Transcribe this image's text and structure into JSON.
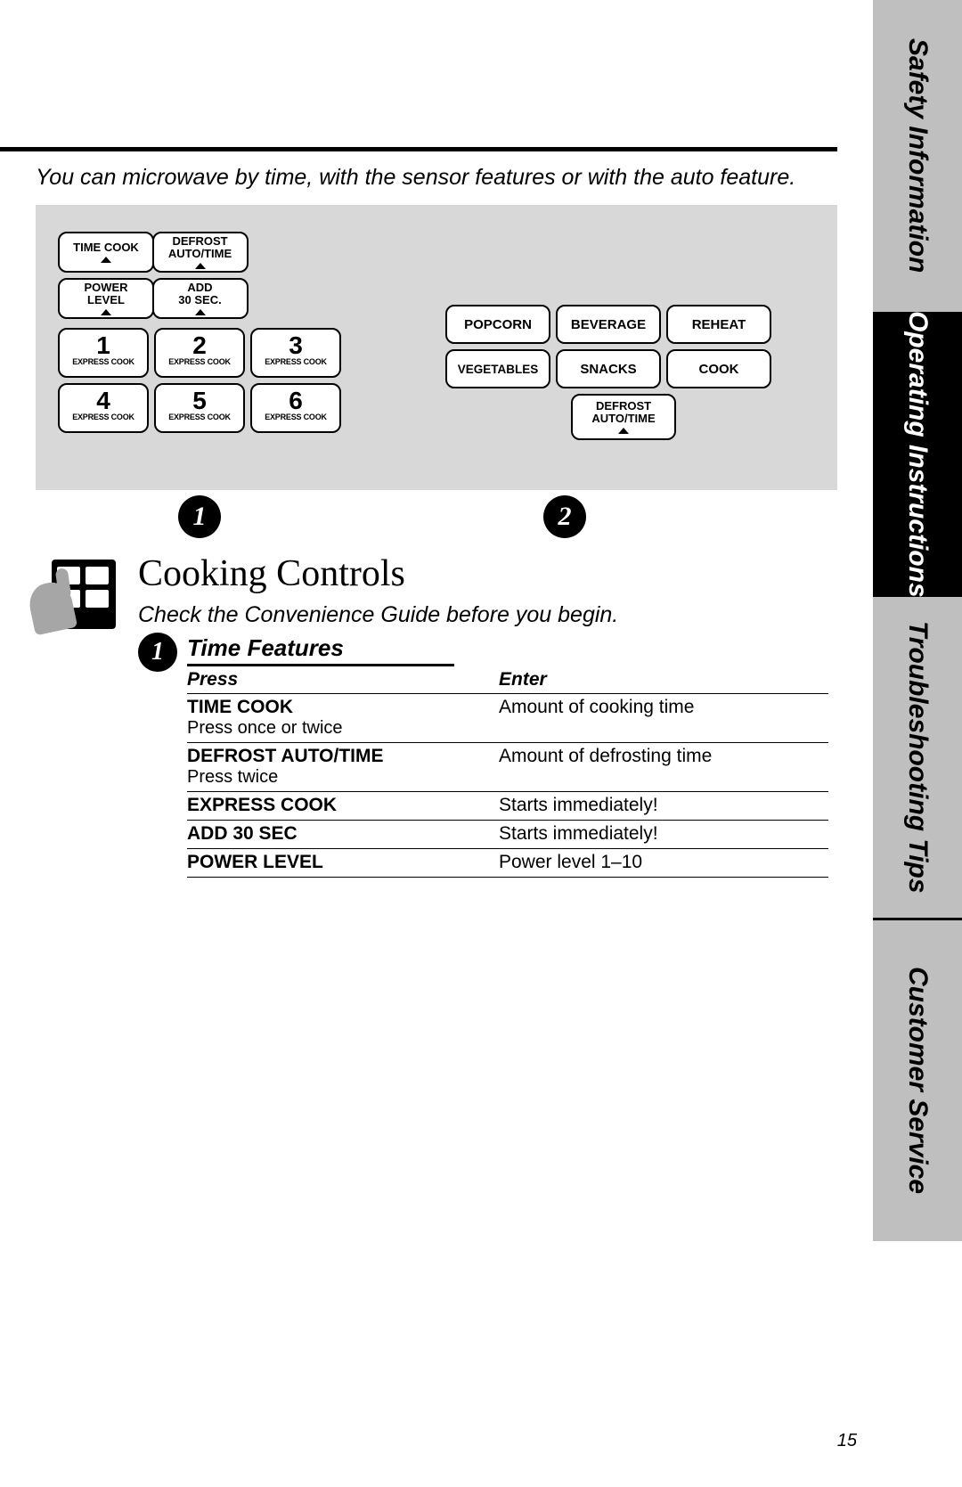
{
  "tabs": {
    "safety": "Safety Information",
    "operating": "Operating Instructions",
    "troubleshooting": "Troubleshooting Tips",
    "customer": "Customer Service"
  },
  "intro": "You can microwave by time, with the sensor features or with the auto feature.",
  "panel": {
    "timecook": "TIME COOK",
    "defrost_line1": "DEFROST",
    "defrost_line2": "AUTO/TIME",
    "power_line1": "POWER",
    "power_line2": "LEVEL",
    "add_line1": "ADD",
    "add_line2": "30 SEC.",
    "express": "EXPRESS COOK",
    "nums": [
      "1",
      "2",
      "3",
      "4",
      "5",
      "6"
    ],
    "right": {
      "popcorn": "POPCORN",
      "beverage": "BEVERAGE",
      "reheat": "REHEAT",
      "vegetables": "VEGETABLES",
      "snacks": "SNACKS",
      "cook": "COOK",
      "d1": "DEFROST",
      "d2": "AUTO/TIME"
    }
  },
  "circles": {
    "one": "1",
    "two": "2",
    "three": "1"
  },
  "section": {
    "title": "Cooking Controls",
    "sub": "Check the Convenience Guide before you begin.",
    "tf": "Time Features"
  },
  "table": {
    "h_press": "Press",
    "h_enter": "Enter",
    "rows": [
      {
        "press": "TIME COOK",
        "press_sub": "Press once or twice",
        "enter": "Amount of cooking time"
      },
      {
        "press": "DEFROST AUTO/TIME",
        "press_sub": "Press twice",
        "enter": "Amount of defrosting time"
      },
      {
        "press": "EXPRESS COOK",
        "press_sub": "",
        "enter": "Starts immediately!"
      },
      {
        "press": "ADD 30 SEC",
        "press_sub": "",
        "enter": "Starts immediately!"
      },
      {
        "press": "POWER LEVEL",
        "press_sub": "",
        "enter": "Power level 1–10"
      }
    ]
  },
  "page_number": "15"
}
